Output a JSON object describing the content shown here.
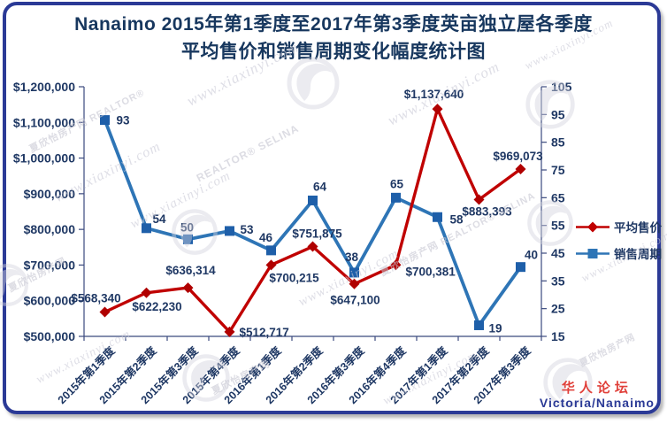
{
  "title": {
    "line1": "Nanaimo 2015年第1季度至2017年第3季度英亩独立屋各季度",
    "line2": "平均售价和销售周期变化幅度统计图"
  },
  "legend": {
    "items": [
      {
        "label": "平均售价",
        "color": "#C00000",
        "marker": "diamond"
      },
      {
        "label": "销售周期",
        "color": "#2E75B6",
        "marker": "square"
      }
    ]
  },
  "footer": {
    "brand": "华人论坛",
    "subtitle": "Victoria/Nanaimo"
  },
  "watermarks": {
    "cn_realtor": "夏欣怡房产网 REALTOR®",
    "selina": "REALTOR® SELINA",
    "site": "www.xiaxinyi.com",
    "cn": "夏欣怡房产网",
    "full": "夏欣怡房产网 REALTOR® SELINA"
  },
  "colors": {
    "frame": "#2B3A96",
    "title_text": "#17375E",
    "axis_text": "#1F3864",
    "axis_line": "#3B4A7E",
    "price_line": "#C00000",
    "price_marker": "#B00000",
    "days_line": "#2E75B6",
    "days_marker": "#1E5FA9",
    "label_text": "#1F3864",
    "brand_red": "#E0403A"
  },
  "chart_data": {
    "type": "line",
    "title": "Nanaimo 2015年第1季度至2017年第3季度英亩独立屋各季度平均售价和销售周期变化幅度统计图",
    "categories": [
      "2015年第1季度",
      "2015年第2季度",
      "2015年第3季度",
      "2015年第4季度",
      "2016年第1季度",
      "2016年第2季度",
      "2016年第3季度",
      "2016年第4季度",
      "2017年第1季度",
      "2017年第2季度",
      "2017年第3季度"
    ],
    "series": [
      {
        "name": "平均售价",
        "axis": "left",
        "marker": "diamond",
        "color": "#C00000",
        "values": [
          568340,
          622230,
          636314,
          512717,
          700215,
          751875,
          647100,
          700381,
          1137640,
          883393,
          969073
        ],
        "labels": [
          "$568,340",
          "$622,230",
          "$636,314",
          "$512,717",
          "$700,215",
          "$751,875",
          "$647,100",
          "$700,381",
          "$1,137,640",
          "$883,393",
          "$969,073"
        ]
      },
      {
        "name": "销售周期",
        "axis": "right",
        "marker": "square",
        "color": "#2E75B6",
        "values": [
          93,
          54,
          50,
          53,
          46,
          64,
          38,
          65,
          58,
          19,
          40
        ],
        "labels": [
          "93",
          "54",
          "50",
          "53",
          "46",
          "64",
          "38",
          "65",
          "58",
          "19",
          "40"
        ]
      }
    ],
    "left_axis": {
      "min": 500000,
      "max": 1200000,
      "step": 100000,
      "tick_labels": [
        "$1,200,000",
        "$1,100,000",
        "$1,000,000",
        "$900,000",
        "$800,000",
        "$700,000",
        "$600,000",
        "$500,000"
      ]
    },
    "right_axis": {
      "min": 15,
      "max": 105,
      "step": 10,
      "tick_labels": [
        "105",
        "95",
        "85",
        "75",
        "65",
        "55",
        "45",
        "35",
        "25",
        "15"
      ]
    },
    "grid": false,
    "legend_position": "right"
  }
}
